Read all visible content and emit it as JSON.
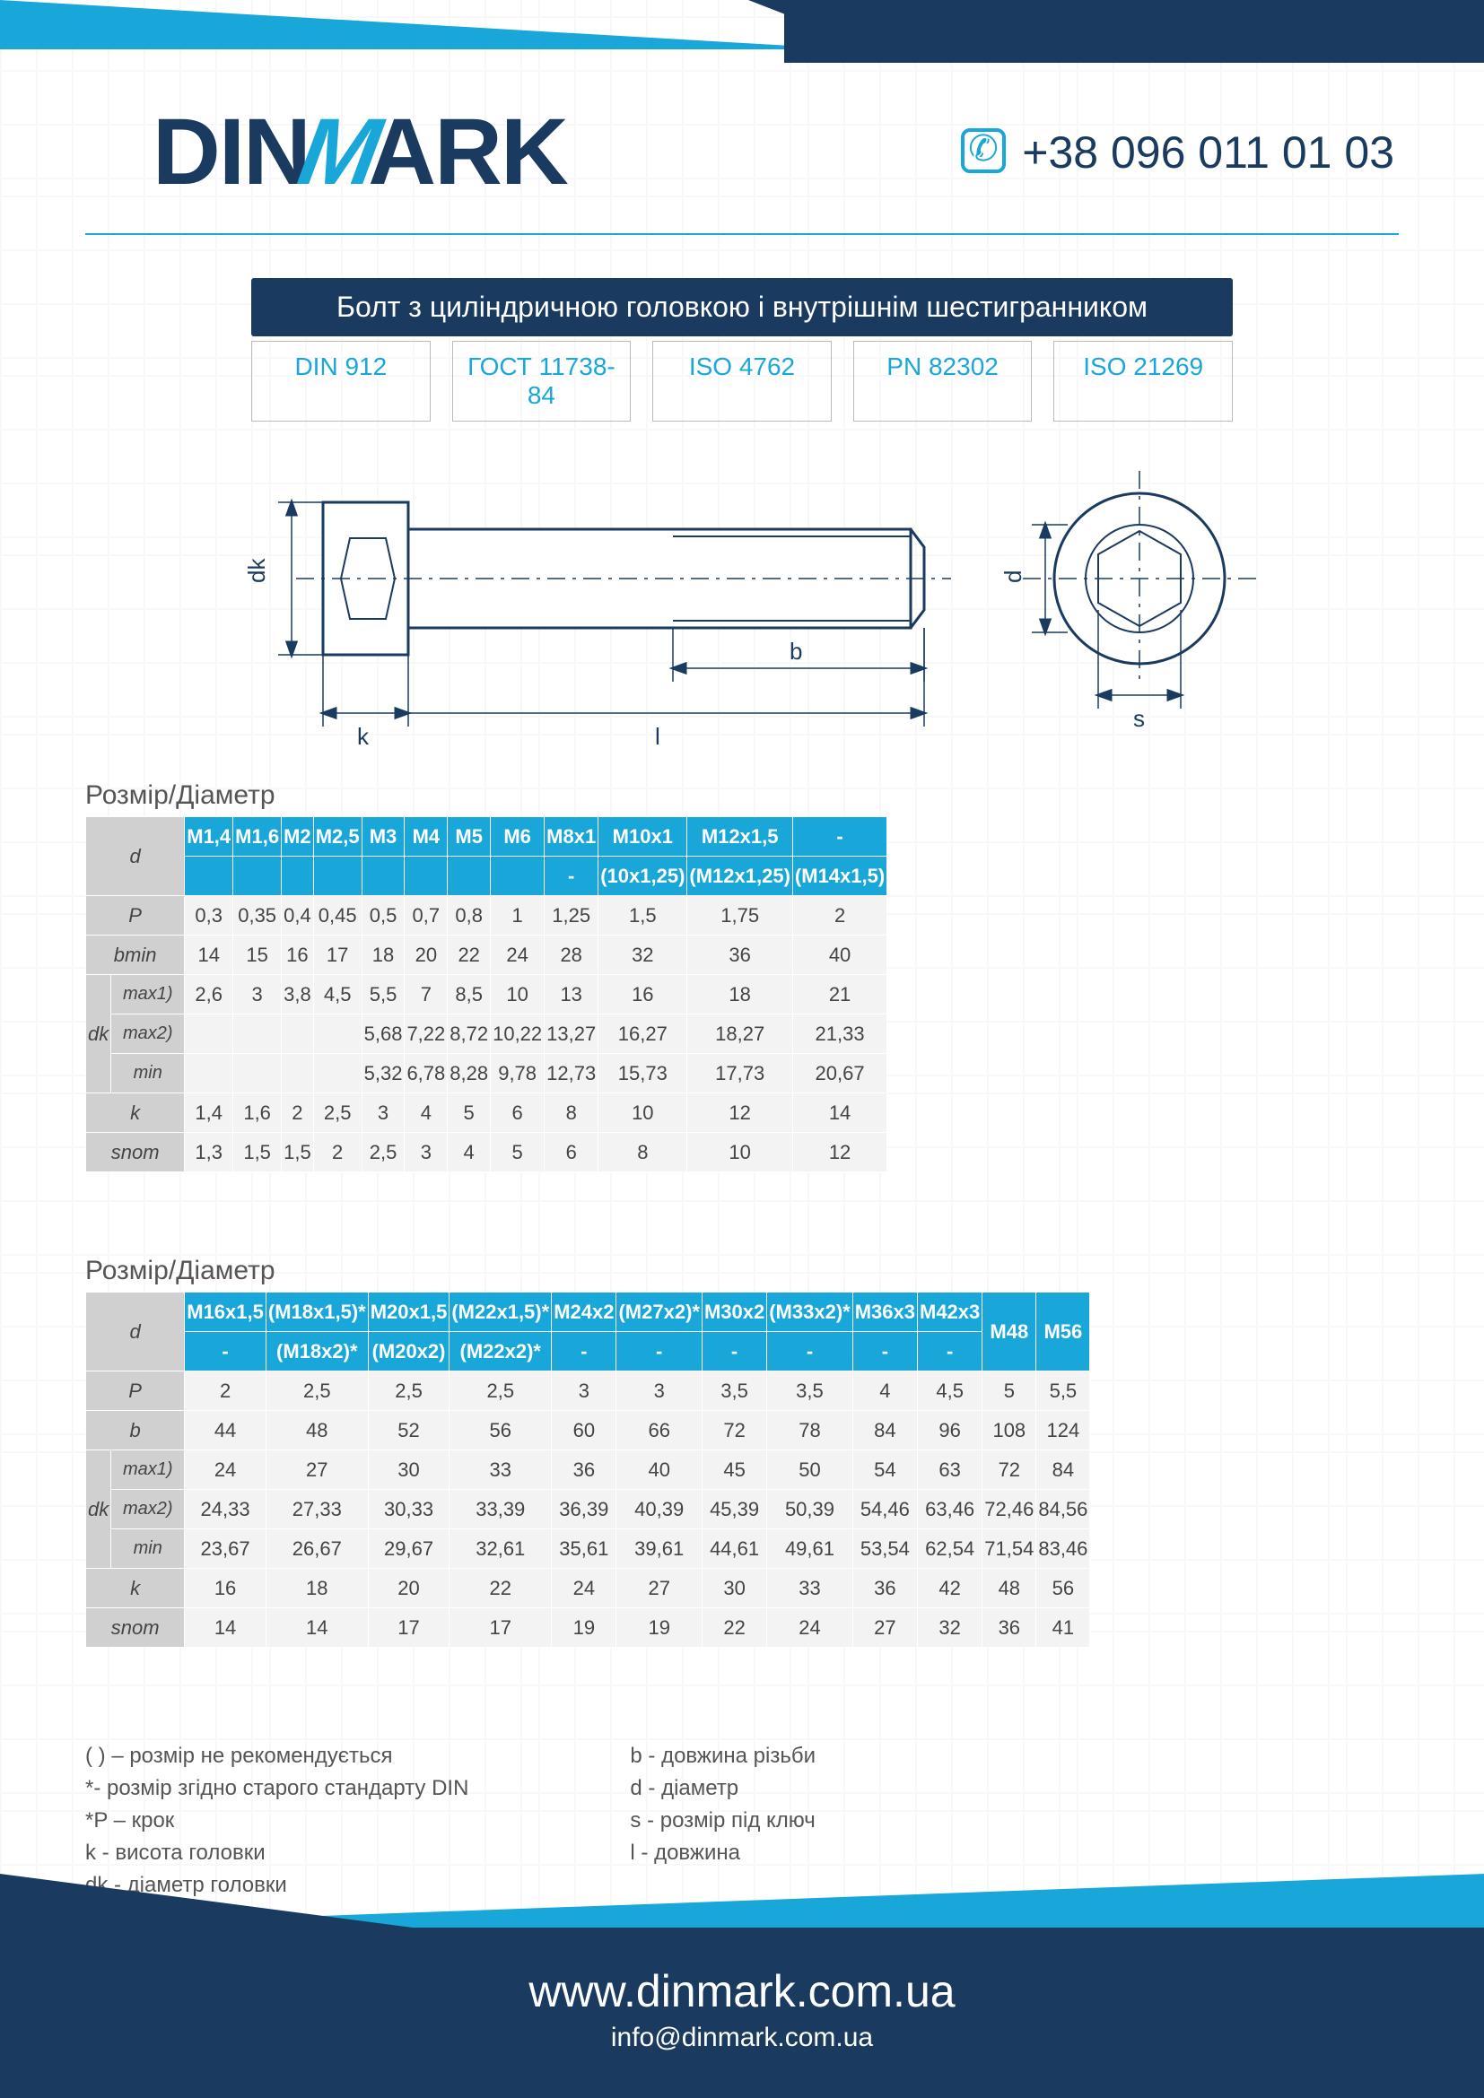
{
  "brand": {
    "p1": "DIN",
    "p2": "M",
    "p3": "ARK"
  },
  "phone": "+38 096 011 01 03",
  "title": "Болт з циліндричною головкою і внутрішнім шестигранником",
  "standards": [
    "DIN 912",
    "ГОСТ 11738-84",
    "ISO 4762",
    "PN 82302",
    "ISO 21269"
  ],
  "colors": {
    "accent": "#19a7d9",
    "navy": "#1b3a5f",
    "row_header": "#d0d0d0",
    "cell": "#f3f3f3",
    "border": "#ffffff",
    "text": "#444444"
  },
  "section_label": "Розмір/Діаметр",
  "diagram_labels": {
    "dk": "dk",
    "k": "k",
    "l": "l",
    "b": "b",
    "d": "d",
    "s": "s"
  },
  "table1": {
    "d_row1": [
      "M1,4",
      "M1,6",
      "M2",
      "M2,5",
      "M3",
      "M4",
      "M5",
      "M6",
      "M8x1",
      "M10x1",
      "M12x1,5",
      "-"
    ],
    "d_row2": [
      "",
      "",
      "",
      "",
      "",
      "",
      "",
      "",
      "-",
      "(10x1,25)",
      "(M12x1,25)",
      "(M14x1,5)"
    ],
    "rows": [
      {
        "label": "P",
        "sub": "",
        "cells": [
          "0,3",
          "0,35",
          "0,4",
          "0,45",
          "0,5",
          "0,7",
          "0,8",
          "1",
          "1,25",
          "1,5",
          "1,75",
          "2"
        ]
      },
      {
        "label": "bmin",
        "sub": "",
        "cells": [
          "14",
          "15",
          "16",
          "17",
          "18",
          "20",
          "22",
          "24",
          "28",
          "32",
          "36",
          "40"
        ]
      },
      {
        "label": "dk",
        "sub": "max1)",
        "cells": [
          "2,6",
          "3",
          "3,8",
          "4,5",
          "5,5",
          "7",
          "8,5",
          "10",
          "13",
          "16",
          "18",
          "21"
        ]
      },
      {
        "label": "",
        "sub": "max2)",
        "cells": [
          "",
          "",
          "",
          "",
          "5,68",
          "7,22",
          "8,72",
          "10,22",
          "13,27",
          "16,27",
          "18,27",
          "21,33"
        ]
      },
      {
        "label": "",
        "sub": "min",
        "cells": [
          "",
          "",
          "",
          "",
          "5,32",
          "6,78",
          "8,28",
          "9,78",
          "12,73",
          "15,73",
          "17,73",
          "20,67"
        ]
      },
      {
        "label": "k",
        "sub": "",
        "cells": [
          "1,4",
          "1,6",
          "2",
          "2,5",
          "3",
          "4",
          "5",
          "6",
          "8",
          "10",
          "12",
          "14"
        ]
      },
      {
        "label": "snom",
        "sub": "",
        "cells": [
          "1,3",
          "1,5",
          "1,5",
          "2",
          "2,5",
          "3",
          "4",
          "5",
          "6",
          "8",
          "10",
          "12"
        ]
      }
    ]
  },
  "table2": {
    "d_row1": [
      "M16x1,5",
      "(M18x1,5)*",
      "M20x1,5",
      "(M22x1,5)*",
      "M24x2",
      "(M27x2)*",
      "M30x2",
      "(M33x2)*",
      "M36x3",
      "M42x3",
      "M48",
      "M56"
    ],
    "d_row2": [
      "-",
      "(M18x2)*",
      "(M20x2)",
      "(M22x2)*",
      "-",
      "-",
      "-",
      "-",
      "-",
      "-",
      "",
      ""
    ],
    "rows": [
      {
        "label": "P",
        "sub": "",
        "cells": [
          "2",
          "2,5",
          "2,5",
          "2,5",
          "3",
          "3",
          "3,5",
          "3,5",
          "4",
          "4,5",
          "5",
          "5,5"
        ]
      },
      {
        "label": "b",
        "sub": "",
        "cells": [
          "44",
          "48",
          "52",
          "56",
          "60",
          "66",
          "72",
          "78",
          "84",
          "96",
          "108",
          "124"
        ]
      },
      {
        "label": "dk",
        "sub": "max1)",
        "cells": [
          "24",
          "27",
          "30",
          "33",
          "36",
          "40",
          "45",
          "50",
          "54",
          "63",
          "72",
          "84"
        ]
      },
      {
        "label": "",
        "sub": "max2)",
        "cells": [
          "24,33",
          "27,33",
          "30,33",
          "33,39",
          "36,39",
          "40,39",
          "45,39",
          "50,39",
          "54,46",
          "63,46",
          "72,46",
          "84,56"
        ]
      },
      {
        "label": "",
        "sub": "min",
        "cells": [
          "23,67",
          "26,67",
          "29,67",
          "32,61",
          "35,61",
          "39,61",
          "44,61",
          "49,61",
          "53,54",
          "62,54",
          "71,54",
          "83,46"
        ]
      },
      {
        "label": "k",
        "sub": "",
        "cells": [
          "16",
          "18",
          "20",
          "22",
          "24",
          "27",
          "30",
          "33",
          "36",
          "42",
          "48",
          "56"
        ]
      },
      {
        "label": "snom",
        "sub": "",
        "cells": [
          "14",
          "14",
          "17",
          "17",
          "19",
          "19",
          "22",
          "24",
          "27",
          "32",
          "36",
          "41"
        ]
      }
    ]
  },
  "legend": {
    "col1": [
      "( ) – розмір не рекомендується",
      "*- розмір згідно старого стандарту  DIN",
      "*P – крок",
      "k - висота головки",
      "dk - діаметр головки"
    ],
    "col2": [
      "b - довжина різьби",
      "d - діаметр",
      "s - розмір під ключ",
      "l - довжина"
    ]
  },
  "footer": {
    "url": "www.dinmark.com.ua",
    "email": "info@dinmark.com.ua"
  }
}
